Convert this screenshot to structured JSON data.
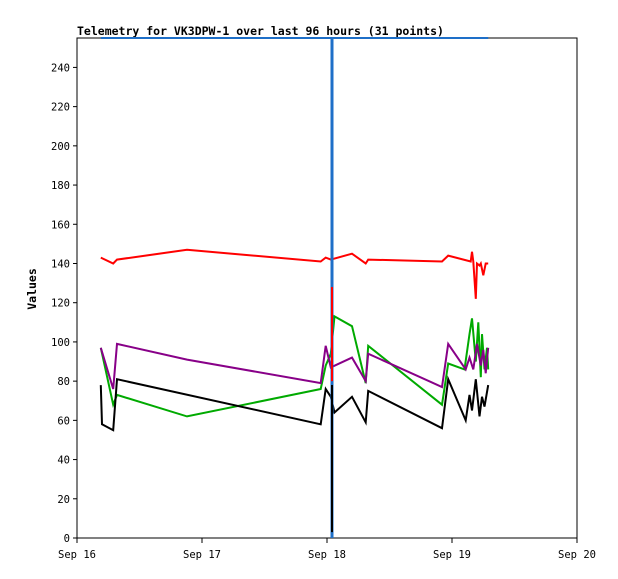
{
  "chart_data": {
    "type": "line",
    "title": "Telemetry for VK3DPW-1 over last 96 hours (31 points)",
    "xlabel": "",
    "ylabel": "Values",
    "xlim": [
      "Sep 16",
      "Sep 20"
    ],
    "ylim": [
      0,
      255
    ],
    "x_ticks": [
      "Sep 16",
      "Sep 17",
      "Sep 18",
      "Sep 19",
      "Sep 20"
    ],
    "y_ticks": [
      0,
      20,
      40,
      60,
      80,
      100,
      120,
      140,
      160,
      180,
      200,
      220,
      240
    ],
    "grid": false,
    "legend": "none",
    "series": [
      {
        "color": "#ff0000",
        "points": [
          [
            16.19,
            143
          ],
          [
            16.29,
            140
          ],
          [
            16.32,
            142
          ],
          [
            16.88,
            147
          ],
          [
            17.95,
            141
          ],
          [
            17.99,
            143
          ],
          [
            18.03,
            142
          ],
          [
            18.2,
            145
          ],
          [
            18.31,
            140
          ],
          [
            18.33,
            142
          ],
          [
            18.92,
            141
          ],
          [
            18.97,
            144
          ],
          [
            19.15,
            141
          ],
          [
            19.16,
            146
          ],
          [
            19.17,
            141
          ],
          [
            19.19,
            122
          ],
          [
            19.2,
            140
          ],
          [
            19.22,
            139
          ],
          [
            19.23,
            140
          ],
          [
            19.25,
            134
          ],
          [
            19.27,
            140
          ],
          [
            19.29,
            140
          ]
        ]
      },
      {
        "color": "#00aa00",
        "points": [
          [
            16.19,
            97
          ],
          [
            16.29,
            68
          ],
          [
            16.32,
            73
          ],
          [
            16.88,
            62
          ],
          [
            17.95,
            76
          ],
          [
            17.99,
            88
          ],
          [
            18.03,
            94
          ],
          [
            18.06,
            113
          ],
          [
            18.2,
            108
          ],
          [
            18.31,
            79
          ],
          [
            18.33,
            98
          ],
          [
            18.92,
            68
          ],
          [
            18.97,
            89
          ],
          [
            19.1,
            86
          ],
          [
            19.14,
            104
          ],
          [
            19.16,
            112
          ],
          [
            19.19,
            90
          ],
          [
            19.21,
            110
          ],
          [
            19.23,
            82
          ],
          [
            19.24,
            104
          ],
          [
            19.26,
            86
          ],
          [
            19.28,
            97
          ],
          [
            19.29,
            86
          ]
        ]
      },
      {
        "color": "#880088",
        "points": [
          [
            16.19,
            97
          ],
          [
            16.29,
            76
          ],
          [
            16.32,
            99
          ],
          [
            16.88,
            91
          ],
          [
            17.95,
            79
          ],
          [
            17.99,
            98
          ],
          [
            18.03,
            87
          ],
          [
            18.2,
            92
          ],
          [
            18.31,
            80
          ],
          [
            18.33,
            94
          ],
          [
            18.92,
            77
          ],
          [
            18.97,
            99
          ],
          [
            19.11,
            86
          ],
          [
            19.14,
            92
          ],
          [
            19.17,
            86
          ],
          [
            19.2,
            99
          ],
          [
            19.23,
            88
          ],
          [
            19.25,
            96
          ],
          [
            19.27,
            84
          ],
          [
            19.29,
            97
          ]
        ]
      },
      {
        "color": "#000000",
        "points": [
          [
            16.19,
            78
          ],
          [
            16.2,
            58
          ],
          [
            16.29,
            55
          ],
          [
            16.32,
            81
          ],
          [
            17.95,
            58
          ],
          [
            17.99,
            76
          ],
          [
            18.03,
            72
          ],
          [
            18.06,
            64
          ],
          [
            18.2,
            72
          ],
          [
            18.31,
            59
          ],
          [
            18.33,
            75
          ],
          [
            18.92,
            56
          ],
          [
            18.97,
            81
          ],
          [
            19.11,
            60
          ],
          [
            19.14,
            73
          ],
          [
            19.16,
            65
          ],
          [
            19.19,
            81
          ],
          [
            19.22,
            62
          ],
          [
            19.24,
            72
          ],
          [
            19.26,
            67
          ],
          [
            19.29,
            78
          ]
        ]
      },
      {
        "color": "#1e6fc8",
        "points": [
          [
            16.19,
            255
          ],
          [
            19.29,
            255
          ]
        ]
      }
    ],
    "overlays": [
      {
        "color": "#1e6fc8",
        "x": 18.04,
        "y_range": [
          0,
          255
        ]
      },
      {
        "color": "#000000",
        "x": 18.04,
        "y_range": [
          3,
          78
        ]
      },
      {
        "color": "#ff0000",
        "x": 18.04,
        "y_range": [
          80,
          128
        ]
      }
    ]
  }
}
